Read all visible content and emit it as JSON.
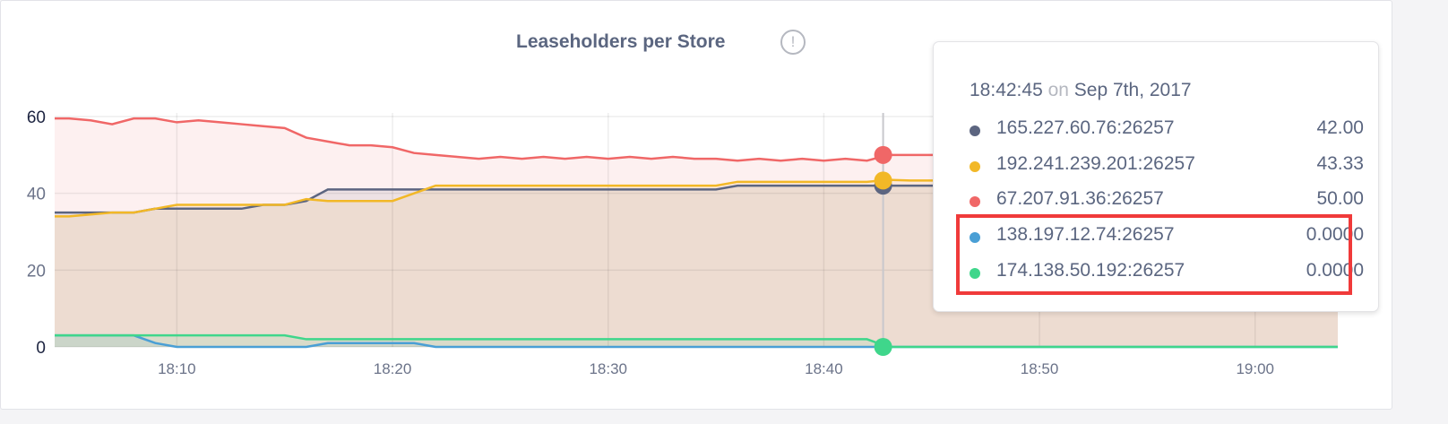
{
  "title": "Leaseholders per Store",
  "info_icon": "exclamation-circle-icon",
  "chart_data": {
    "type": "area",
    "title": "Leaseholders per Store",
    "ylim": [
      0,
      60
    ],
    "yticks": [
      "0",
      "20",
      "40",
      "60"
    ],
    "xlim": [
      "18:04:20",
      "19:03:50"
    ],
    "xticks": [
      "18:10",
      "18:20",
      "18:30",
      "18:40",
      "18:50",
      "19:00"
    ],
    "grid": true,
    "x": [
      "18:04",
      "18:05",
      "18:06",
      "18:07",
      "18:08",
      "18:09",
      "18:10",
      "18:11",
      "18:12",
      "18:13",
      "18:14",
      "18:15",
      "18:16",
      "18:17",
      "18:18",
      "18:19",
      "18:20",
      "18:21",
      "18:22",
      "18:23",
      "18:24",
      "18:25",
      "18:26",
      "18:27",
      "18:28",
      "18:29",
      "18:30",
      "18:31",
      "18:32",
      "18:33",
      "18:34",
      "18:35",
      "18:36",
      "18:37",
      "18:38",
      "18:39",
      "18:40",
      "18:41",
      "18:42",
      "18:43",
      "18:44",
      "18:45",
      "18:46",
      "18:47",
      "18:48",
      "18:49",
      "18:50",
      "18:51",
      "18:52",
      "18:53",
      "18:54",
      "18:55",
      "18:56",
      "18:57",
      "18:58",
      "18:59",
      "19:00",
      "19:01",
      "19:02",
      "19:03",
      "19:04"
    ],
    "series": [
      {
        "name": "165.227.60.76:26257",
        "color": "#5c6580",
        "values": [
          35,
          35,
          35,
          35,
          35,
          36,
          36,
          36,
          36,
          36,
          37,
          37,
          38,
          41,
          41,
          41,
          41,
          41,
          41,
          41,
          41,
          41,
          41,
          41,
          41,
          41,
          41,
          41,
          41,
          41,
          41,
          41,
          42,
          42,
          42,
          42,
          42,
          42,
          42,
          42,
          42,
          42,
          42,
          42,
          42,
          42,
          42,
          42,
          42,
          42,
          42,
          42,
          42,
          42,
          42,
          42,
          42,
          42,
          42,
          42,
          42
        ]
      },
      {
        "name": "192.241.239.201:26257",
        "color": "#f2b827",
        "values": [
          34,
          34,
          34.5,
          35,
          35,
          36,
          37,
          37,
          37,
          37,
          37,
          37,
          38.5,
          38,
          38,
          38,
          38,
          40,
          42,
          42,
          42,
          42,
          42,
          42,
          42,
          42,
          42,
          42,
          42,
          42,
          42,
          42,
          43,
          43,
          43,
          43,
          43,
          43,
          43,
          43.5,
          43.33,
          43.33,
          43.33,
          43.33,
          43.33,
          43.33,
          43.33,
          43.33,
          43.33,
          43.33,
          43.33,
          43.33,
          43.33,
          43.33,
          43.33,
          43.33,
          43.33,
          43.33,
          43.33,
          43.33,
          43.33
        ]
      },
      {
        "name": "67.207.91.36:26257",
        "color": "#f06767",
        "values": [
          59.5,
          59.5,
          59,
          58,
          59.5,
          59.5,
          58.5,
          59,
          58.5,
          58,
          57.5,
          57,
          54.5,
          53.5,
          52.5,
          52.5,
          52,
          50.5,
          50,
          49.5,
          49,
          49.5,
          49,
          49.5,
          49,
          49.5,
          49,
          49.5,
          49,
          49.5,
          49,
          49,
          48.5,
          49,
          48.5,
          49,
          48.5,
          49,
          48.5,
          50,
          50,
          50,
          50,
          50,
          50,
          50,
          50,
          50,
          50,
          50,
          50,
          50,
          50,
          50,
          50,
          50,
          50,
          50,
          50,
          50,
          50
        ]
      },
      {
        "name": "138.197.12.74:26257",
        "color": "#4a9fd5",
        "values": [
          3,
          3,
          3,
          3,
          3,
          1,
          0,
          0,
          0,
          0,
          0,
          0,
          0,
          1,
          1,
          1,
          1,
          1,
          0,
          0,
          0,
          0,
          0,
          0,
          0,
          0,
          0,
          0,
          0,
          0,
          0,
          0,
          0,
          0,
          0,
          0,
          0,
          0,
          0,
          0,
          0,
          0,
          0,
          0,
          0,
          0,
          0,
          0,
          0,
          0,
          0,
          0,
          0,
          0,
          0,
          0,
          0,
          0,
          0,
          0,
          0
        ]
      },
      {
        "name": "174.138.50.192:26257",
        "color": "#3fd68b",
        "values": [
          3,
          3,
          3,
          3,
          3,
          3,
          3,
          3,
          3,
          3,
          3,
          3,
          2,
          2,
          2,
          2,
          2,
          2,
          2,
          2,
          2,
          2,
          2,
          2,
          2,
          2,
          2,
          2,
          2,
          2,
          2,
          2,
          2,
          2,
          2,
          2,
          2,
          2,
          2,
          0,
          0,
          0,
          0,
          0,
          0,
          0,
          0,
          0,
          0,
          0,
          0,
          0,
          0,
          0,
          0,
          0,
          0,
          0,
          0,
          0,
          0
        ]
      }
    ],
    "hover": "18:42:45"
  },
  "tooltip": {
    "time": "18:42:45",
    "on": "on",
    "date": "Sep 7th, 2017",
    "rows": [
      {
        "label": "165.227.60.76:26257",
        "value": "42.00",
        "color": "#5c6580"
      },
      {
        "label": "192.241.239.201:26257",
        "value": "43.33",
        "color": "#f2b827"
      },
      {
        "label": "67.207.91.36:26257",
        "value": "50.00",
        "color": "#f06767"
      },
      {
        "label": "138.197.12.74:26257",
        "value": "0.0000",
        "color": "#4a9fd5"
      },
      {
        "label": "174.138.50.192:26257",
        "value": "0.0000",
        "color": "#3fd68b"
      }
    ],
    "highlight_color": "#f03a3a"
  }
}
